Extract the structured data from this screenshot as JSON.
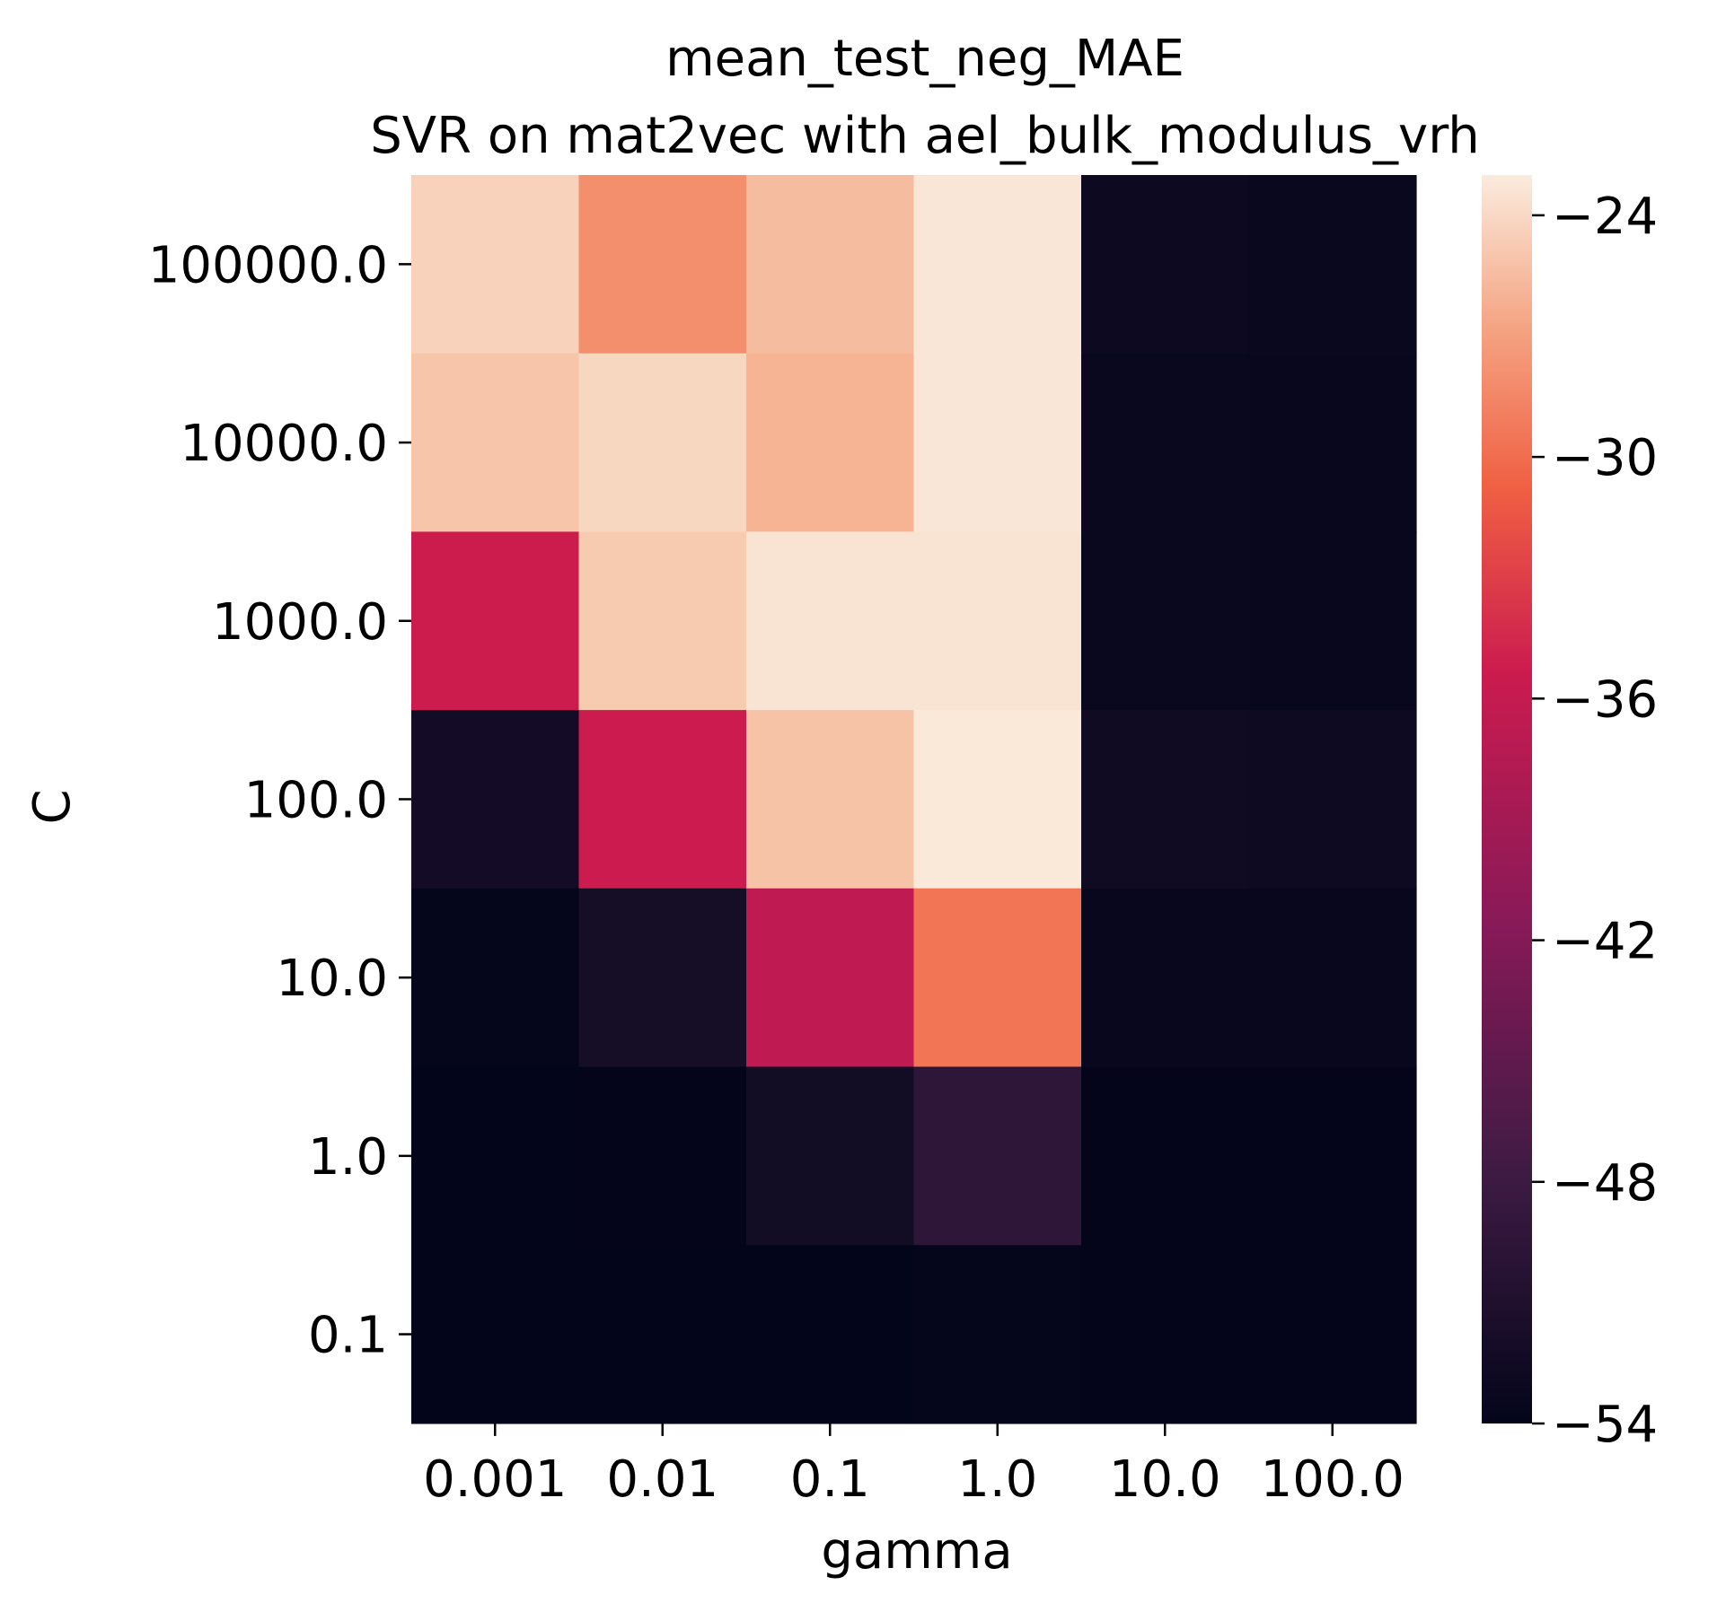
{
  "chart_data": {
    "type": "heatmap",
    "title": "mean_test_neg_MAE",
    "subtitle": "SVR on mat2vec with ael_bulk_modulus_vrh",
    "xlabel": "gamma",
    "ylabel": "C",
    "x_categories": [
      "0.001",
      "0.01",
      "0.1",
      "1.0",
      "10.0",
      "100.0"
    ],
    "y_categories": [
      "100000.0",
      "10000.0",
      "1000.0",
      "100.0",
      "10.0",
      "1.0",
      "0.1"
    ],
    "values": [
      [
        -24.5,
        -28.0,
        -25.6,
        -23.3,
        -52.9,
        -53.1
      ],
      [
        -25.2,
        -24.2,
        -26.0,
        -23.3,
        -53.1,
        -53.3
      ],
      [
        -35.2,
        -24.9,
        -23.4,
        -23.4,
        -53.1,
        -53.3
      ],
      [
        -51.9,
        -35.3,
        -25.3,
        -23.2,
        -52.4,
        -52.7
      ],
      [
        -53.7,
        -51.7,
        -36.7,
        -29.5,
        -53.3,
        -53.4
      ],
      [
        -54.0,
        -53.9,
        -52.1,
        -49.3,
        -53.9,
        -53.9
      ],
      [
        -54.0,
        -54.0,
        -54.0,
        -53.8,
        -53.9,
        -53.9
      ]
    ],
    "colorbar": {
      "min": -54,
      "max": -23.0,
      "ticks": [
        -24,
        -30,
        -36,
        -42,
        -48,
        -54
      ],
      "tick_labels": [
        "−24",
        "−30",
        "−36",
        "−42",
        "−48",
        "−54"
      ],
      "colormap": "rocket"
    },
    "grid": false,
    "legend": "colorbar-right"
  }
}
